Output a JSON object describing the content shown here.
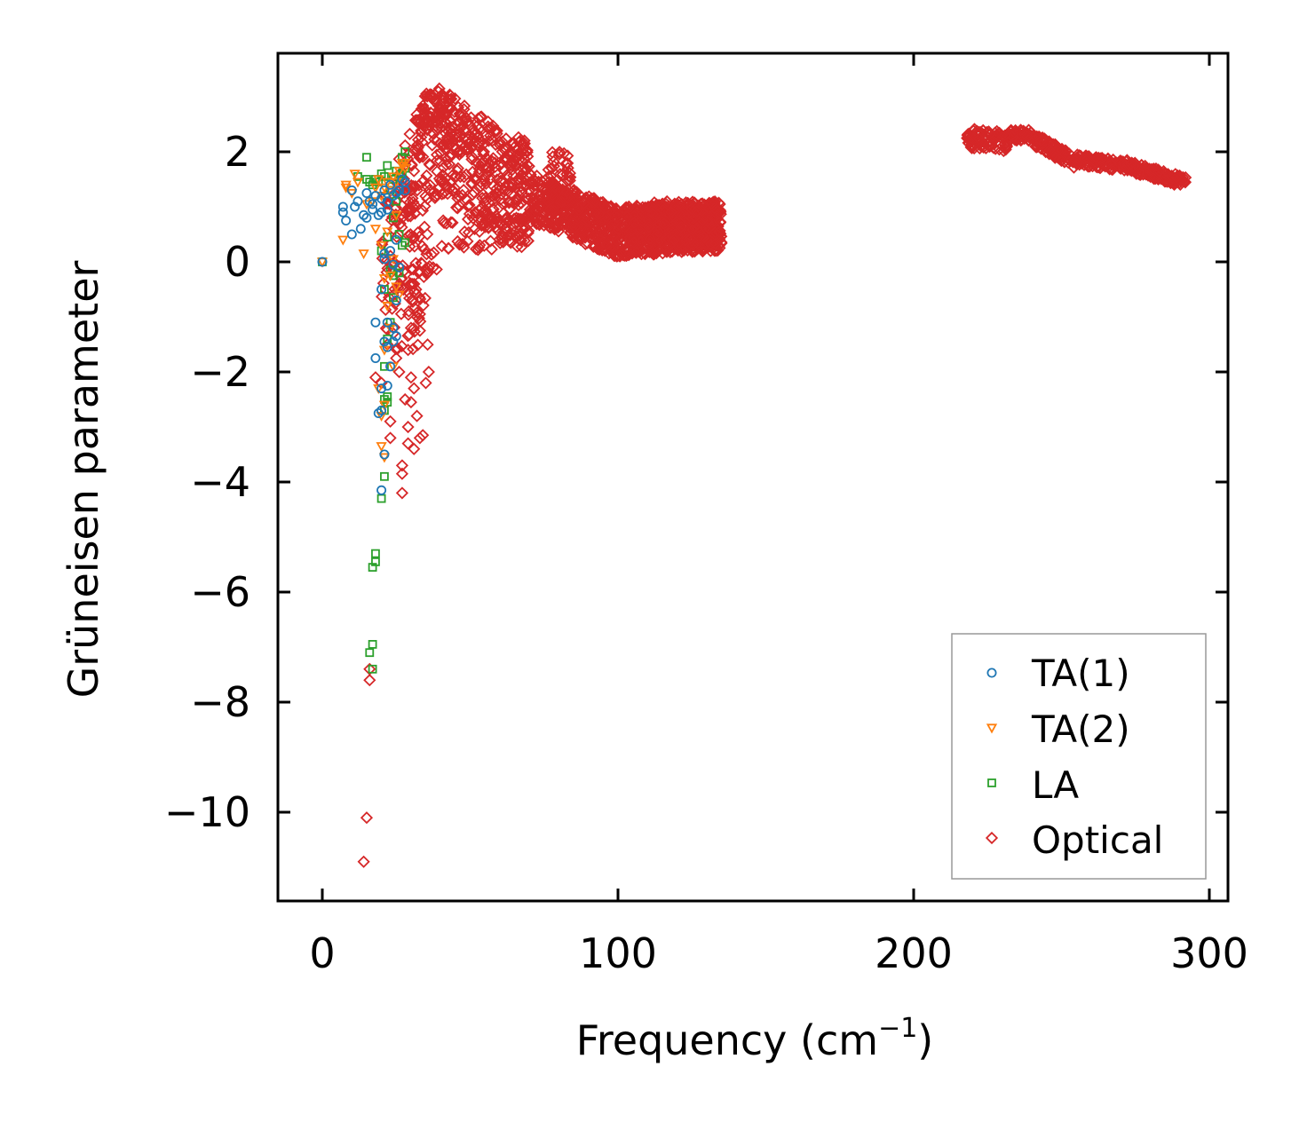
{
  "chart_data": {
    "type": "scatter",
    "title": "",
    "xlabel": "Frequency (cm",
    "xlabel_sup": "−1",
    "xlabel_close": ")",
    "ylabel": "Grüneisen parameter",
    "xlim": [
      -15,
      305
    ],
    "ylim": [
      -11.5,
      3.8
    ],
    "xticks": [
      0,
      100,
      200,
      300
    ],
    "xtick_labels": [
      "0",
      "100",
      "200",
      "300"
    ],
    "yticks": [
      2,
      0,
      -2,
      -4,
      -6,
      -8,
      -10
    ],
    "ytick_labels": [
      "2",
      "0",
      "−2",
      "−4",
      "−6",
      "−8",
      "−10"
    ],
    "grid": false,
    "legend_position": "lower-right",
    "series": [
      {
        "name": "TA(1)",
        "label": "TA(1)",
        "color": "#1f77b4",
        "marker": "circle",
        "points": [
          [
            0,
            0
          ],
          [
            7,
            1
          ],
          [
            7,
            0.9
          ],
          [
            8,
            0.75
          ],
          [
            10,
            0.5
          ],
          [
            10,
            1.3
          ],
          [
            11,
            1
          ],
          [
            12,
            1.1
          ],
          [
            13,
            0.6
          ],
          [
            14,
            0.85
          ],
          [
            15,
            0.8
          ],
          [
            15,
            1.25
          ],
          [
            16,
            1.1
          ],
          [
            17,
            1.05
          ],
          [
            17,
            0.95
          ],
          [
            18,
            1.2
          ],
          [
            19,
            0.85
          ],
          [
            20,
            0.9
          ],
          [
            20,
            1.15
          ],
          [
            21,
            1.3
          ],
          [
            22,
            0.95
          ],
          [
            22,
            1.1
          ],
          [
            23,
            1.4
          ],
          [
            24,
            1.2
          ],
          [
            25,
            1.25
          ],
          [
            26,
            1.3
          ],
          [
            27,
            1.5
          ],
          [
            28,
            1.45
          ],
          [
            28,
            1.3
          ],
          [
            25,
            0.4
          ],
          [
            23,
            0.2
          ],
          [
            21,
            0.05
          ],
          [
            24,
            -0.05
          ],
          [
            26,
            -0.1
          ],
          [
            25,
            -0.7
          ],
          [
            20,
            -0.5
          ],
          [
            22,
            -1.1
          ],
          [
            24,
            -1.2
          ],
          [
            25,
            -1.35
          ],
          [
            24,
            -1.45
          ],
          [
            21,
            -1.45
          ],
          [
            22,
            -1.55
          ],
          [
            23,
            -1.9
          ],
          [
            18,
            -1.75
          ],
          [
            22,
            -2.25
          ],
          [
            20,
            -2.3
          ],
          [
            19,
            -2.75
          ],
          [
            20,
            -2.7
          ],
          [
            21,
            -3.5
          ],
          [
            20,
            -4.15
          ],
          [
            18,
            -1.1
          ],
          [
            21,
            0.15
          ]
        ]
      },
      {
        "name": "TA(2)",
        "label": "TA(2)",
        "color": "#ff7f0e",
        "marker": "triangle-down",
        "points": [
          [
            0,
            0
          ],
          [
            7,
            0.4
          ],
          [
            8,
            1.35
          ],
          [
            8,
            1.4
          ],
          [
            10,
            1.25
          ],
          [
            11,
            1.6
          ],
          [
            12,
            1.45
          ],
          [
            14,
            0.15
          ],
          [
            15,
            1.05
          ],
          [
            17,
            1.1
          ],
          [
            18,
            1.35
          ],
          [
            19,
            1.5
          ],
          [
            20,
            1.2
          ],
          [
            21,
            1.35
          ],
          [
            22,
            1.45
          ],
          [
            23,
            1.3
          ],
          [
            24,
            1.55
          ],
          [
            25,
            1.45
          ],
          [
            26,
            1.65
          ],
          [
            27,
            1.8
          ],
          [
            28,
            1.7
          ],
          [
            28,
            1.8
          ],
          [
            27,
            1.75
          ],
          [
            25,
            0.85
          ],
          [
            22,
            0.55
          ],
          [
            18,
            0.6
          ],
          [
            20,
            0.3
          ],
          [
            24,
            0.05
          ],
          [
            23,
            -0.25
          ],
          [
            21,
            -0.3
          ],
          [
            25,
            -0.45
          ],
          [
            26,
            -0.6
          ],
          [
            22,
            -0.8
          ],
          [
            23,
            -1.2
          ],
          [
            21,
            -1.6
          ],
          [
            24,
            -1.9
          ],
          [
            19,
            -2.3
          ],
          [
            21,
            -2.6
          ],
          [
            20,
            -2.8
          ],
          [
            20,
            -3.35
          ],
          [
            21,
            -3.55
          ]
        ]
      },
      {
        "name": "LA",
        "label": "LA",
        "color": "#2ca02c",
        "marker": "square",
        "points": [
          [
            0,
            0
          ],
          [
            12,
            1.55
          ],
          [
            15,
            1.9
          ],
          [
            15,
            1.5
          ],
          [
            16,
            1.45
          ],
          [
            17,
            1.4
          ],
          [
            18,
            1.5
          ],
          [
            19,
            1.45
          ],
          [
            20,
            1.6
          ],
          [
            21,
            1.55
          ],
          [
            22,
            1.75
          ],
          [
            23,
            1.3
          ],
          [
            24,
            1.5
          ],
          [
            25,
            1.65
          ],
          [
            26,
            1.55
          ],
          [
            27,
            1.9
          ],
          [
            28,
            2
          ],
          [
            28,
            1.7
          ],
          [
            27,
            1.6
          ],
          [
            25,
            1.1
          ],
          [
            24,
            0.8
          ],
          [
            26,
            0.5
          ],
          [
            27,
            0.3
          ],
          [
            28,
            0.35
          ],
          [
            22,
            0.45
          ],
          [
            20,
            0.2
          ],
          [
            23,
            -0.15
          ],
          [
            24,
            -0.25
          ],
          [
            26,
            -0.2
          ],
          [
            21,
            -0.5
          ],
          [
            24,
            -0.65
          ],
          [
            23,
            -1.1
          ],
          [
            22,
            -1.4
          ],
          [
            21,
            -1.9
          ],
          [
            22,
            -2.45
          ],
          [
            21,
            -2.5
          ],
          [
            22,
            -2.55
          ],
          [
            21,
            -2.7
          ],
          [
            21,
            -3.9
          ],
          [
            20,
            -4.3
          ],
          [
            18,
            -5.3
          ],
          [
            18,
            -5.45
          ],
          [
            17,
            -5.55
          ],
          [
            17,
            -6.95
          ],
          [
            16,
            -7.1
          ],
          [
            17,
            -7.4
          ]
        ]
      },
      {
        "name": "Optical",
        "label": "Optical",
        "color": "#d62728",
        "marker": "diamond",
        "points": []
      }
    ]
  },
  "legend": {
    "items": [
      "TA(1)",
      "TA(2)",
      "LA",
      "Optical"
    ]
  }
}
